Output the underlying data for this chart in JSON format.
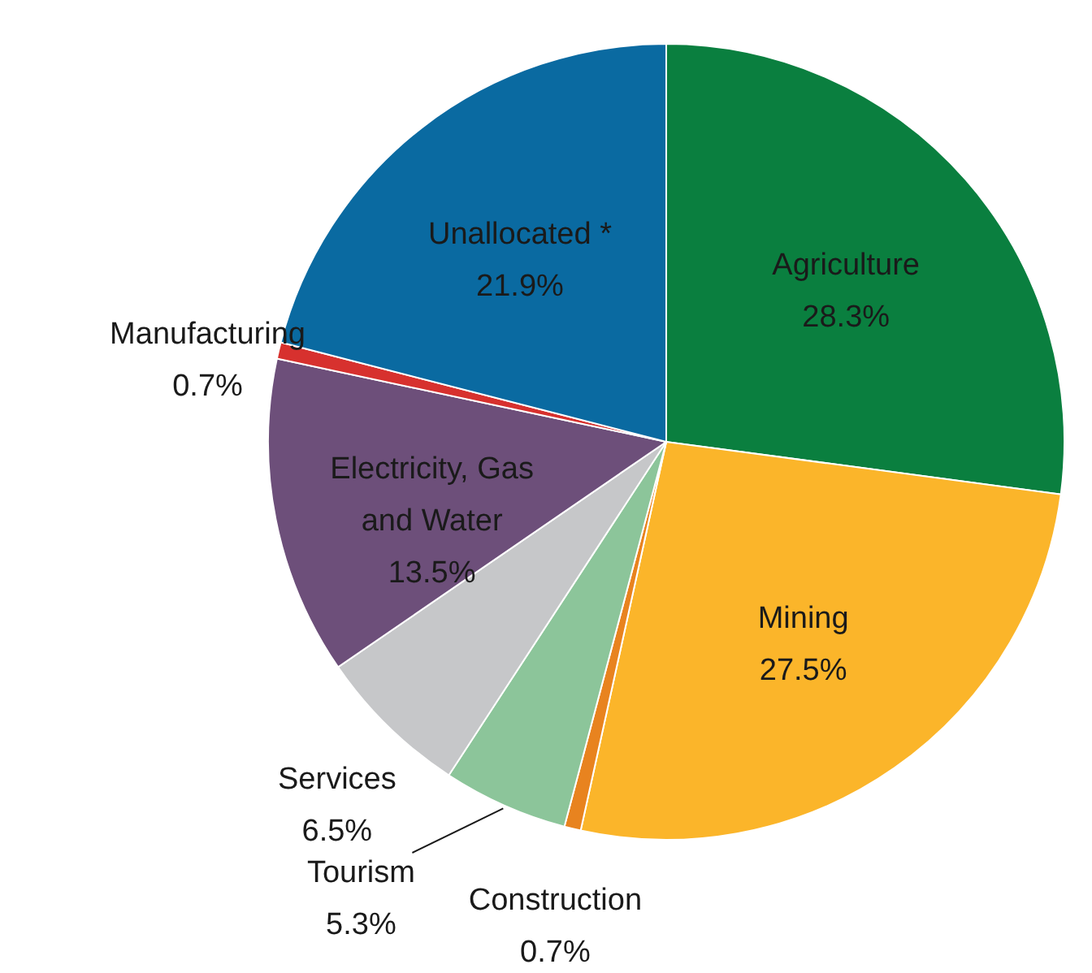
{
  "chart_data": {
    "type": "pie",
    "categories": [
      "Agriculture",
      "Mining",
      "Construction",
      "Tourism",
      "Services",
      "Electricity, Gas\nand Water",
      "Manufacturing",
      "Unallocated *"
    ],
    "values": [
      28.3,
      27.5,
      0.7,
      5.3,
      6.5,
      13.5,
      0.7,
      21.9
    ],
    "value_labels": [
      "28.3%",
      "27.5%",
      "0.7%",
      "5.3%",
      "6.5%",
      "13.5%",
      "0.7%",
      "21.9%"
    ],
    "colors": [
      "#0a7f3f",
      "#fbb52a",
      "#e8831f",
      "#8cc59a",
      "#c6c7c9",
      "#6d4f7a",
      "#d7312e",
      "#0a6aa1"
    ]
  }
}
